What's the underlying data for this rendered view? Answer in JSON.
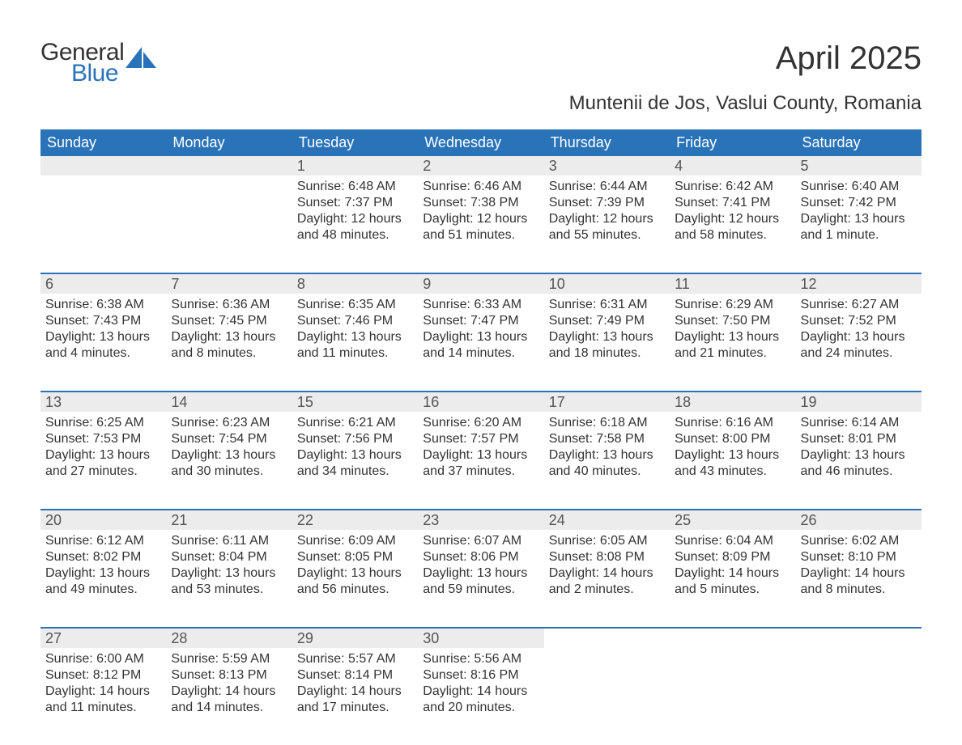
{
  "brand": {
    "word1": "General",
    "word2": "Blue"
  },
  "title": "April 2025",
  "subtitle": "Muntenii de Jos, Vaslui County, Romania",
  "colors": {
    "header_bg": "#2a73b8",
    "daynum_bg": "#ececec",
    "text": "#333333",
    "logo_blue": "#2a73b8",
    "background": "#ffffff"
  },
  "dayheaders": [
    "Sunday",
    "Monday",
    "Tuesday",
    "Wednesday",
    "Thursday",
    "Friday",
    "Saturday"
  ],
  "weeks": [
    [
      {
        "num": "",
        "lines": [
          "",
          "",
          "",
          ""
        ]
      },
      {
        "num": "",
        "lines": [
          "",
          "",
          "",
          ""
        ]
      },
      {
        "num": "1",
        "lines": [
          "Sunrise: 6:48 AM",
          "Sunset: 7:37 PM",
          "Daylight: 12 hours",
          "and 48 minutes."
        ]
      },
      {
        "num": "2",
        "lines": [
          "Sunrise: 6:46 AM",
          "Sunset: 7:38 PM",
          "Daylight: 12 hours",
          "and 51 minutes."
        ]
      },
      {
        "num": "3",
        "lines": [
          "Sunrise: 6:44 AM",
          "Sunset: 7:39 PM",
          "Daylight: 12 hours",
          "and 55 minutes."
        ]
      },
      {
        "num": "4",
        "lines": [
          "Sunrise: 6:42 AM",
          "Sunset: 7:41 PM",
          "Daylight: 12 hours",
          "and 58 minutes."
        ]
      },
      {
        "num": "5",
        "lines": [
          "Sunrise: 6:40 AM",
          "Sunset: 7:42 PM",
          "Daylight: 13 hours",
          "and 1 minute."
        ]
      }
    ],
    [
      {
        "num": "6",
        "lines": [
          "Sunrise: 6:38 AM",
          "Sunset: 7:43 PM",
          "Daylight: 13 hours",
          "and 4 minutes."
        ]
      },
      {
        "num": "7",
        "lines": [
          "Sunrise: 6:36 AM",
          "Sunset: 7:45 PM",
          "Daylight: 13 hours",
          "and 8 minutes."
        ]
      },
      {
        "num": "8",
        "lines": [
          "Sunrise: 6:35 AM",
          "Sunset: 7:46 PM",
          "Daylight: 13 hours",
          "and 11 minutes."
        ]
      },
      {
        "num": "9",
        "lines": [
          "Sunrise: 6:33 AM",
          "Sunset: 7:47 PM",
          "Daylight: 13 hours",
          "and 14 minutes."
        ]
      },
      {
        "num": "10",
        "lines": [
          "Sunrise: 6:31 AM",
          "Sunset: 7:49 PM",
          "Daylight: 13 hours",
          "and 18 minutes."
        ]
      },
      {
        "num": "11",
        "lines": [
          "Sunrise: 6:29 AM",
          "Sunset: 7:50 PM",
          "Daylight: 13 hours",
          "and 21 minutes."
        ]
      },
      {
        "num": "12",
        "lines": [
          "Sunrise: 6:27 AM",
          "Sunset: 7:52 PM",
          "Daylight: 13 hours",
          "and 24 minutes."
        ]
      }
    ],
    [
      {
        "num": "13",
        "lines": [
          "Sunrise: 6:25 AM",
          "Sunset: 7:53 PM",
          "Daylight: 13 hours",
          "and 27 minutes."
        ]
      },
      {
        "num": "14",
        "lines": [
          "Sunrise: 6:23 AM",
          "Sunset: 7:54 PM",
          "Daylight: 13 hours",
          "and 30 minutes."
        ]
      },
      {
        "num": "15",
        "lines": [
          "Sunrise: 6:21 AM",
          "Sunset: 7:56 PM",
          "Daylight: 13 hours",
          "and 34 minutes."
        ]
      },
      {
        "num": "16",
        "lines": [
          "Sunrise: 6:20 AM",
          "Sunset: 7:57 PM",
          "Daylight: 13 hours",
          "and 37 minutes."
        ]
      },
      {
        "num": "17",
        "lines": [
          "Sunrise: 6:18 AM",
          "Sunset: 7:58 PM",
          "Daylight: 13 hours",
          "and 40 minutes."
        ]
      },
      {
        "num": "18",
        "lines": [
          "Sunrise: 6:16 AM",
          "Sunset: 8:00 PM",
          "Daylight: 13 hours",
          "and 43 minutes."
        ]
      },
      {
        "num": "19",
        "lines": [
          "Sunrise: 6:14 AM",
          "Sunset: 8:01 PM",
          "Daylight: 13 hours",
          "and 46 minutes."
        ]
      }
    ],
    [
      {
        "num": "20",
        "lines": [
          "Sunrise: 6:12 AM",
          "Sunset: 8:02 PM",
          "Daylight: 13 hours",
          "and 49 minutes."
        ]
      },
      {
        "num": "21",
        "lines": [
          "Sunrise: 6:11 AM",
          "Sunset: 8:04 PM",
          "Daylight: 13 hours",
          "and 53 minutes."
        ]
      },
      {
        "num": "22",
        "lines": [
          "Sunrise: 6:09 AM",
          "Sunset: 8:05 PM",
          "Daylight: 13 hours",
          "and 56 minutes."
        ]
      },
      {
        "num": "23",
        "lines": [
          "Sunrise: 6:07 AM",
          "Sunset: 8:06 PM",
          "Daylight: 13 hours",
          "and 59 minutes."
        ]
      },
      {
        "num": "24",
        "lines": [
          "Sunrise: 6:05 AM",
          "Sunset: 8:08 PM",
          "Daylight: 14 hours",
          "and 2 minutes."
        ]
      },
      {
        "num": "25",
        "lines": [
          "Sunrise: 6:04 AM",
          "Sunset: 8:09 PM",
          "Daylight: 14 hours",
          "and 5 minutes."
        ]
      },
      {
        "num": "26",
        "lines": [
          "Sunrise: 6:02 AM",
          "Sunset: 8:10 PM",
          "Daylight: 14 hours",
          "and 8 minutes."
        ]
      }
    ],
    [
      {
        "num": "27",
        "lines": [
          "Sunrise: 6:00 AM",
          "Sunset: 8:12 PM",
          "Daylight: 14 hours",
          "and 11 minutes."
        ]
      },
      {
        "num": "28",
        "lines": [
          "Sunrise: 5:59 AM",
          "Sunset: 8:13 PM",
          "Daylight: 14 hours",
          "and 14 minutes."
        ]
      },
      {
        "num": "29",
        "lines": [
          "Sunrise: 5:57 AM",
          "Sunset: 8:14 PM",
          "Daylight: 14 hours",
          "and 17 minutes."
        ]
      },
      {
        "num": "30",
        "lines": [
          "Sunrise: 5:56 AM",
          "Sunset: 8:16 PM",
          "Daylight: 14 hours",
          "and 20 minutes."
        ]
      },
      {
        "num": "",
        "lines": [
          "",
          "",
          "",
          ""
        ]
      },
      {
        "num": "",
        "lines": [
          "",
          "",
          "",
          ""
        ]
      },
      {
        "num": "",
        "lines": [
          "",
          "",
          "",
          ""
        ]
      }
    ]
  ]
}
